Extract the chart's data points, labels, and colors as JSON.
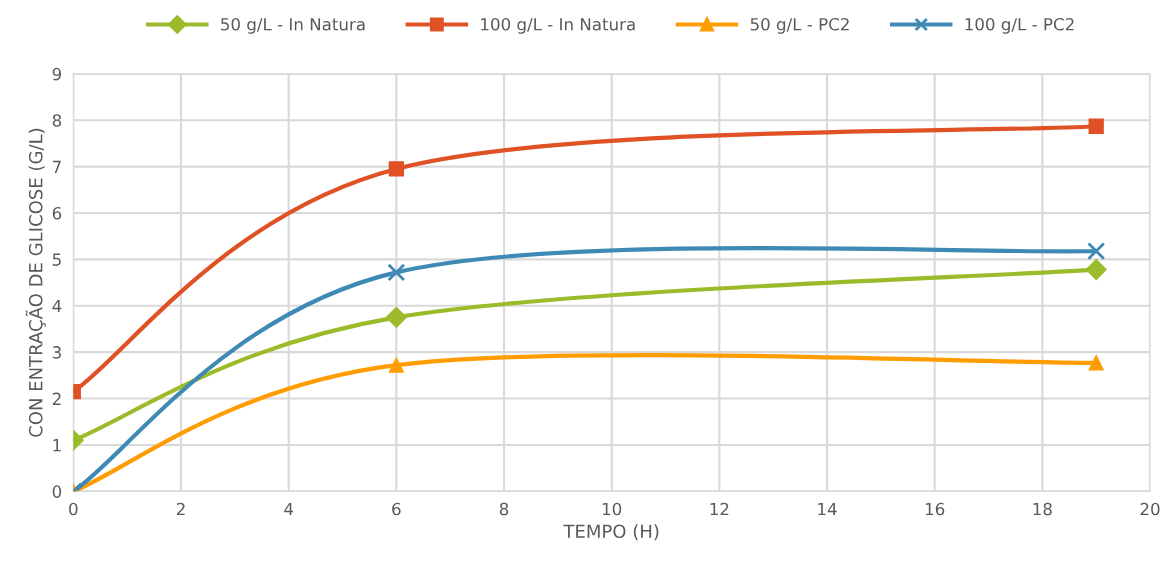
{
  "chart_data": {
    "type": "line",
    "xlabel": "TEMPO (H)",
    "ylabel": "CON ENTRAÇÃO DE GLICOSE (G/L)",
    "x": [
      0,
      6,
      19
    ],
    "series": [
      {
        "name": "50 g/L - In Natura",
        "color": "#9bbb2b",
        "marker": "diamond",
        "values": [
          1.1,
          3.75,
          4.78
        ]
      },
      {
        "name": "100 g/L - In Natura",
        "color": "#e05226",
        "marker": "square",
        "values": [
          2.15,
          6.95,
          7.87
        ]
      },
      {
        "name": "50 g/L - PC2",
        "color": "#ff9c00",
        "marker": "triangle",
        "values": [
          0,
          2.72,
          2.77
        ]
      },
      {
        "name": "100 g/L - PC2",
        "color": "#3f8ab5",
        "marker": "cross",
        "values": [
          0,
          4.72,
          5.18
        ]
      }
    ],
    "xlim": [
      0,
      20
    ],
    "xticks": [
      0,
      2,
      4,
      6,
      8,
      10,
      12,
      14,
      16,
      18,
      20
    ],
    "ylim": [
      0,
      9
    ],
    "yticks": [
      0,
      1,
      2,
      3,
      4,
      5,
      6,
      7,
      8,
      9
    ],
    "grid": true,
    "legend": "top"
  }
}
